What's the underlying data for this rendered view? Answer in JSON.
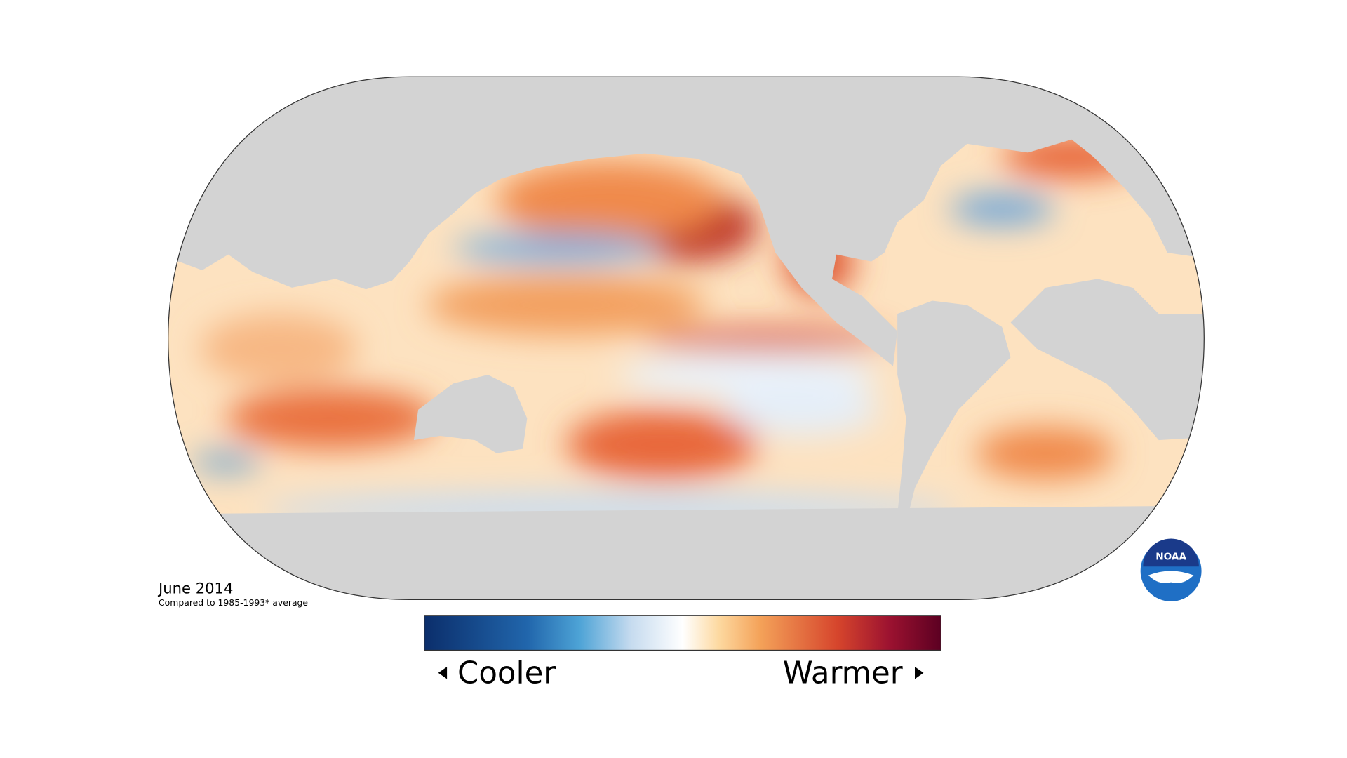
{
  "map": {
    "date": "June 2014",
    "note": "Compared to 1985-1993* average"
  },
  "legend": {
    "low": "Cooler",
    "high": "Warmer"
  },
  "logo": "NOAA"
}
